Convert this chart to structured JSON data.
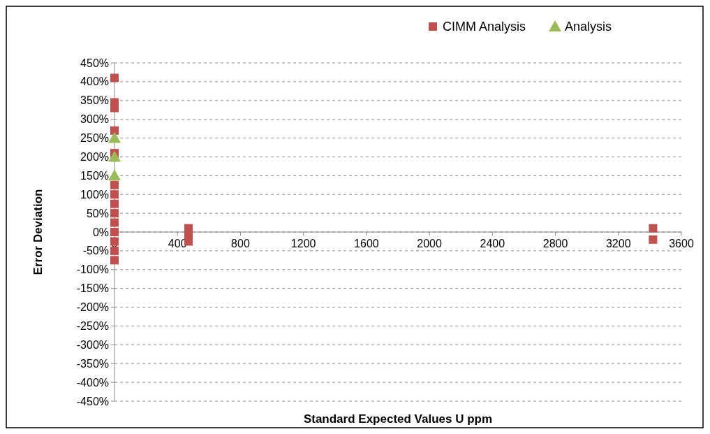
{
  "chart_data": {
    "type": "scatter",
    "xlabel": "Standard Expected Values U ppm",
    "ylabel": "Error Deviation",
    "xlim": [
      0,
      3600
    ],
    "xticks": [
      0,
      400,
      800,
      1200,
      1600,
      2000,
      2400,
      2800,
      3200,
      3600
    ],
    "ylim": [
      -450,
      450
    ],
    "yticks": [
      {
        "value": -450,
        "label": "-450%"
      },
      {
        "value": -400,
        "label": "-400%"
      },
      {
        "value": -350,
        "label": "-350%"
      },
      {
        "value": -300,
        "label": "-300%"
      },
      {
        "value": -250,
        "label": "-250%"
      },
      {
        "value": -200,
        "label": "-200%"
      },
      {
        "value": -150,
        "label": "-150%"
      },
      {
        "value": -100,
        "label": "-100%"
      },
      {
        "value": -50,
        "label": "-50%"
      },
      {
        "value": 0,
        "label": "0%"
      },
      {
        "value": 50,
        "label": "50%"
      },
      {
        "value": 100,
        "label": "100%"
      },
      {
        "value": 150,
        "label": "150%"
      },
      {
        "value": 200,
        "label": "200%"
      },
      {
        "value": 250,
        "label": "250%"
      },
      {
        "value": 300,
        "label": "300%"
      },
      {
        "value": 350,
        "label": "350%"
      },
      {
        "value": 400,
        "label": "400%"
      },
      {
        "value": 450,
        "label": "450%"
      }
    ],
    "grid": "y",
    "legend": "top right",
    "series": [
      {
        "name": "CIMM Analysis",
        "color": "#c0504d",
        "marker": "square",
        "x": [
          0,
          0,
          0,
          0,
          0,
          0,
          0,
          0,
          0,
          0,
          0,
          0,
          0,
          0,
          470,
          470,
          470,
          3420,
          3420
        ],
        "values": [
          410,
          345,
          330,
          270,
          210,
          125,
          100,
          75,
          50,
          25,
          0,
          -25,
          -50,
          -75,
          10,
          -10,
          -25,
          10,
          -20
        ]
      },
      {
        "name": "Analysis",
        "color": "#9bbb59",
        "marker": "triangle",
        "x": [
          0,
          0,
          0
        ],
        "values": [
          250,
          200,
          150
        ]
      }
    ]
  }
}
